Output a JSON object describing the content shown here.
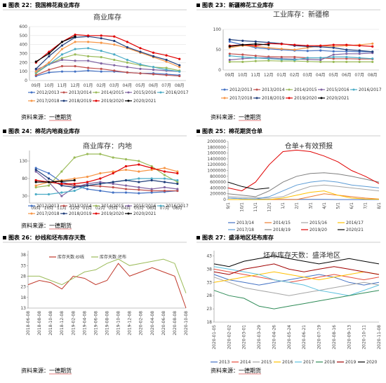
{
  "figures": [
    {
      "caption": "图表 22：我国棉花商业库存",
      "source": "资料来源：一德期货"
    },
    {
      "caption": "图表 23：新疆棉花工业库存",
      "source": "资料来源：一德期货"
    },
    {
      "caption": "图表 24：棉花内地商业库存",
      "source": "资料来源：一德期货"
    },
    {
      "caption": "图表 25：棉花期货仓单"
    },
    {
      "caption": "图表 26：纱线和坯布库存天数",
      "source": "资料来源：一德期货"
    },
    {
      "caption": "图表 27：盛泽地区坯布库存",
      "source": "资料来源：一德期货"
    }
  ],
  "chart_data": [
    {
      "type": "line",
      "title": "商业库存",
      "categories": [
        "09月",
        "10月",
        "11月",
        "12月",
        "01月",
        "02月",
        "03月",
        "04月",
        "05月",
        "06月",
        "07月",
        "08月"
      ],
      "ylim": [
        0,
        600
      ],
      "yticks": [
        0,
        100,
        200,
        300,
        400,
        500,
        600
      ],
      "grid": true,
      "series": [
        {
          "name": "2012/2013",
          "color": "#4472c4",
          "values": [
            50,
            90,
            100,
            100,
            110,
            100,
            100,
            90,
            80,
            80,
            70,
            60
          ]
        },
        {
          "name": "2013/2014",
          "color": "#c0504d",
          "values": [
            60,
            120,
            160,
            160,
            140,
            130,
            110,
            90,
            80,
            70,
            60,
            50
          ]
        },
        {
          "name": "2014/2015",
          "color": "#9bbb59",
          "values": [
            80,
            180,
            250,
            290,
            270,
            260,
            230,
            200,
            170,
            150,
            140,
            110
          ]
        },
        {
          "name": "2015/2016",
          "color": "#8064a2",
          "values": [
            120,
            180,
            230,
            220,
            220,
            190,
            170,
            150,
            130,
            120,
            110,
            100
          ]
        },
        {
          "name": "2016/2017",
          "color": "#4bacc6",
          "values": [
            90,
            180,
            290,
            350,
            360,
            330,
            290,
            230,
            180,
            150,
            120,
            100
          ]
        },
        {
          "name": "2017/2018",
          "color": "#f79646",
          "values": [
            100,
            200,
            350,
            430,
            430,
            420,
            400,
            360,
            310,
            260,
            210,
            150
          ]
        },
        {
          "name": "2018/2019",
          "color": "#1f3d7a",
          "values": [
            130,
            270,
            390,
            480,
            490,
            470,
            440,
            370,
            320,
            270,
            230,
            170
          ]
        },
        {
          "name": "2019/2020",
          "color": "#e00000",
          "values": [
            200,
            320,
            430,
            510,
            500,
            500,
            490,
            430,
            360,
            310,
            280,
            240
          ]
        },
        {
          "name": "2020/2021",
          "color": "#000000",
          "values": [
            210,
            300,
            430,
            490,
            null,
            null,
            null,
            null,
            null,
            null,
            null,
            null
          ]
        }
      ]
    },
    {
      "type": "line",
      "title": "工业库存：新疆棉",
      "categories": [
        "09月",
        "10月",
        "11月",
        "12月",
        "01月",
        "02月",
        "03月",
        "04月",
        "05月",
        "06月",
        "07月",
        "08月"
      ],
      "ylim": [
        0,
        100
      ],
      "yticks": [
        0,
        50,
        100
      ],
      "grid": true,
      "series": [
        {
          "name": "2012/2013",
          "color": "#4472c4",
          "values": [
            70,
            62,
            55,
            52,
            50,
            48,
            47,
            48,
            46,
            46,
            45,
            45
          ]
        },
        {
          "name": "2013/2014",
          "color": "#c0504d",
          "values": [
            40,
            38,
            35,
            33,
            32,
            32,
            30,
            30,
            28,
            28,
            27,
            27
          ]
        },
        {
          "name": "2014/2015",
          "color": "#9bbb59",
          "values": [
            20,
            20,
            22,
            23,
            22,
            22,
            21,
            20,
            20,
            20,
            20,
            20
          ]
        },
        {
          "name": "2015/2016",
          "color": "#8064a2",
          "values": [
            25,
            28,
            30,
            30,
            28,
            27,
            26,
            25,
            38,
            40,
            40,
            42
          ]
        },
        {
          "name": "2016/2017",
          "color": "#4bacc6",
          "values": [
            35,
            32,
            30,
            28,
            26,
            25,
            30,
            30,
            32,
            32,
            30,
            28
          ]
        },
        {
          "name": "2017/2018",
          "color": "#f79646",
          "values": [
            55,
            60,
            58,
            55,
            52,
            50,
            55,
            60,
            58,
            60,
            62,
            65
          ]
        },
        {
          "name": "2018/2019",
          "color": "#1f3d7a",
          "values": [
            75,
            72,
            70,
            68,
            65,
            60,
            58,
            57,
            55,
            50,
            48,
            45
          ]
        },
        {
          "name": "2019/2020",
          "color": "#e00000",
          "values": [
            60,
            62,
            60,
            65,
            64,
            62,
            60,
            60,
            62,
            62,
            60,
            58
          ]
        },
        {
          "name": "2020/2021",
          "color": "#000000",
          "values": [
            58,
            62,
            64,
            62,
            null,
            null,
            null,
            null,
            null,
            null,
            null,
            null
          ]
        }
      ]
    },
    {
      "type": "line",
      "title": "商业库存：内地",
      "categories": [
        "09月",
        "10月",
        "11月",
        "12月",
        "01月",
        "02月",
        "03月",
        "04月",
        "05月",
        "06月",
        "07月",
        "08月"
      ],
      "ylim": [
        10,
        160
      ],
      "yticks": [
        30,
        80,
        130
      ],
      "grid": false,
      "series": [
        {
          "name": "2012/2013",
          "color": "#4472c4",
          "values": [
            110,
            95,
            70,
            60,
            50,
            45,
            40,
            40,
            38,
            40,
            42,
            45
          ]
        },
        {
          "name": "2013/2014",
          "color": "#c0504d",
          "values": [
            75,
            70,
            65,
            60,
            60,
            58,
            55,
            50,
            48,
            45,
            45,
            45
          ]
        },
        {
          "name": "2014/2015",
          "color": "#9bbb59",
          "values": [
            55,
            60,
            100,
            140,
            150,
            150,
            140,
            135,
            130,
            115,
            90,
            70
          ]
        },
        {
          "name": "2015/2016",
          "color": "#8064a2",
          "values": [
            100,
            70,
            30,
            55,
            65,
            70,
            65,
            60,
            55,
            50,
            55,
            50
          ]
        },
        {
          "name": "2016/2017",
          "color": "#4bacc6",
          "values": [
            35,
            35,
            40,
            45,
            60,
            65,
            70,
            75,
            80,
            80,
            80,
            75
          ]
        },
        {
          "name": "2017/2018",
          "color": "#f79646",
          "values": [
            60,
            70,
            75,
            80,
            85,
            95,
            100,
            105,
            100,
            105,
            110,
            100
          ]
        },
        {
          "name": "2018/2019",
          "color": "#1f3d7a",
          "values": [
            105,
            80,
            60,
            55,
            60,
            65,
            70,
            75,
            70,
            75,
            70,
            65
          ]
        },
        {
          "name": "2019/2020",
          "color": "#e00000",
          "values": [
            75,
            70,
            65,
            65,
            70,
            80,
            95,
            115,
            120,
            110,
            100,
            95
          ]
        },
        {
          "name": "2020/2021",
          "color": "#000000",
          "values": [
            70,
            70,
            72,
            75,
            null,
            null,
            null,
            null,
            null,
            null,
            null,
            null
          ]
        }
      ]
    },
    {
      "type": "line",
      "title": "仓单+有效预报",
      "categories": [
        "9/1",
        "10/1",
        "11/1",
        "12/1",
        "1/1",
        "2/1",
        "3/1",
        "4/1",
        "5/1",
        "6/1",
        "7/1",
        "8/1"
      ],
      "ylim": [
        0,
        2000000
      ],
      "yticks": [
        0,
        200000,
        400000,
        600000,
        800000,
        1000000,
        1200000,
        1400000,
        1600000,
        1800000,
        2000000
      ],
      "grid": false,
      "series": [
        {
          "name": "2013/14",
          "color": "#4472c4",
          "values": [
            50000,
            30000,
            20000,
            10000,
            5000,
            5000,
            5000,
            5000,
            0,
            0,
            0,
            0
          ]
        },
        {
          "name": "2014/15",
          "color": "#ed7d31",
          "values": [
            0,
            0,
            0,
            0,
            0,
            0,
            100000,
            200000,
            150000,
            100000,
            50000,
            20000
          ]
        },
        {
          "name": "2015/16",
          "color": "#a5a5a5",
          "values": [
            100000,
            80000,
            60000,
            50000,
            100000,
            300000,
            450000,
            500000,
            450000,
            400000,
            350000,
            300000
          ]
        },
        {
          "name": "2016/17",
          "color": "#ffc000",
          "values": [
            0,
            0,
            0,
            0,
            50000,
            150000,
            250000,
            300000,
            150000,
            50000,
            20000,
            10000
          ]
        },
        {
          "name": "2017/18",
          "color": "#5b9bd5",
          "values": [
            50000,
            30000,
            20000,
            100000,
            300000,
            500000,
            600000,
            650000,
            600000,
            500000,
            450000,
            400000
          ]
        },
        {
          "name": "2018/19",
          "color": "#7f7f7f",
          "values": [
            200000,
            150000,
            100000,
            300000,
            600000,
            800000,
            900000,
            920000,
            880000,
            800000,
            700000,
            600000
          ]
        },
        {
          "name": "2019/20",
          "color": "#e00000",
          "values": [
            400000,
            300000,
            600000,
            1200000,
            1650000,
            1700000,
            1650000,
            1500000,
            1300000,
            1000000,
            800000,
            550000
          ]
        },
        {
          "name": "2020/21",
          "color": "#000000",
          "values": [
            600000,
            450000,
            350000,
            400000,
            null,
            null,
            null,
            null,
            null,
            null,
            null,
            null
          ]
        }
      ]
    },
    {
      "type": "line",
      "categories": [
        "2018-06-08",
        "2018-08-08",
        "2018-10-08",
        "2018-12-08",
        "2019-02-08",
        "2019-04-08",
        "2019-06-08",
        "2019-08-08",
        "2019-10-08",
        "2019-12-08",
        "2020-02-08",
        "2020-04-08",
        "2020-06-08",
        "2020-08-08",
        "2020-10-08"
      ],
      "ylim": [
        13,
        40
      ],
      "yticks": [
        13,
        18,
        23,
        28,
        33,
        38
      ],
      "grid": false,
      "series": [
        {
          "name": "库存天数:纱线",
          "color": "#c0392b",
          "values": [
            24,
            26,
            25,
            22,
            28,
            27,
            24,
            26,
            34,
            28,
            30,
            32,
            30,
            28,
            13
          ]
        },
        {
          "name": "库存天数:坯布",
          "color": "#9bbb59",
          "values": [
            28,
            28,
            26,
            24,
            27,
            30,
            31,
            34,
            36,
            33,
            34,
            35,
            36,
            34,
            20
          ]
        }
      ]
    },
    {
      "type": "line",
      "title": "坯布库存天数：盛泽地区",
      "categories": [
        "2020-01-05",
        "2020-02-02",
        "2020-03-01",
        "2020-03-29",
        "2020-04-26",
        "2020-05-24",
        "2020-06-21",
        "2020-07-19",
        "2020-08-16",
        "2020-09-13",
        "2020-10-11",
        "2020-11-08"
      ],
      "ylim": [
        18,
        45
      ],
      "yticks": [
        18,
        23,
        28,
        33,
        38,
        43
      ],
      "grid": false,
      "series": [
        {
          "name": "2013",
          "color": "#4472c4",
          "values": [
            36,
            34,
            33,
            32,
            33,
            34,
            35,
            36,
            35,
            33,
            32,
            33
          ]
        },
        {
          "name": "2014",
          "color": "#e74c3c",
          "values": [
            38,
            37,
            36,
            35,
            34,
            33,
            34,
            35,
            36,
            35,
            34,
            35
          ]
        },
        {
          "name": "2015",
          "color": "#a5a5a5",
          "values": [
            35,
            33,
            31,
            30,
            29,
            28,
            29,
            30,
            31,
            32,
            33,
            32
          ]
        },
        {
          "name": "2016",
          "color": "#ffc000",
          "values": [
            33,
            34,
            35,
            36,
            37,
            36,
            35,
            34,
            35,
            36,
            37,
            36
          ]
        },
        {
          "name": "2017",
          "color": "#5bc0de",
          "values": [
            39,
            38,
            37,
            36,
            34,
            33,
            32,
            30,
            29,
            28,
            30,
            32
          ]
        },
        {
          "name": "2018",
          "color": "#2e8b57",
          "values": [
            30,
            28,
            27,
            24,
            23,
            24,
            25,
            26,
            27,
            28,
            29,
            30
          ]
        },
        {
          "name": "2019",
          "color": "#a00000",
          "values": [
            37,
            36,
            38,
            39,
            40,
            38,
            37,
            38,
            39,
            38,
            37,
            36
          ]
        },
        {
          "name": "2020",
          "color": "#000000",
          "values": [
            40,
            39,
            41,
            42,
            43,
            42,
            41,
            40,
            41,
            42,
            41,
            40
          ]
        }
      ]
    }
  ]
}
